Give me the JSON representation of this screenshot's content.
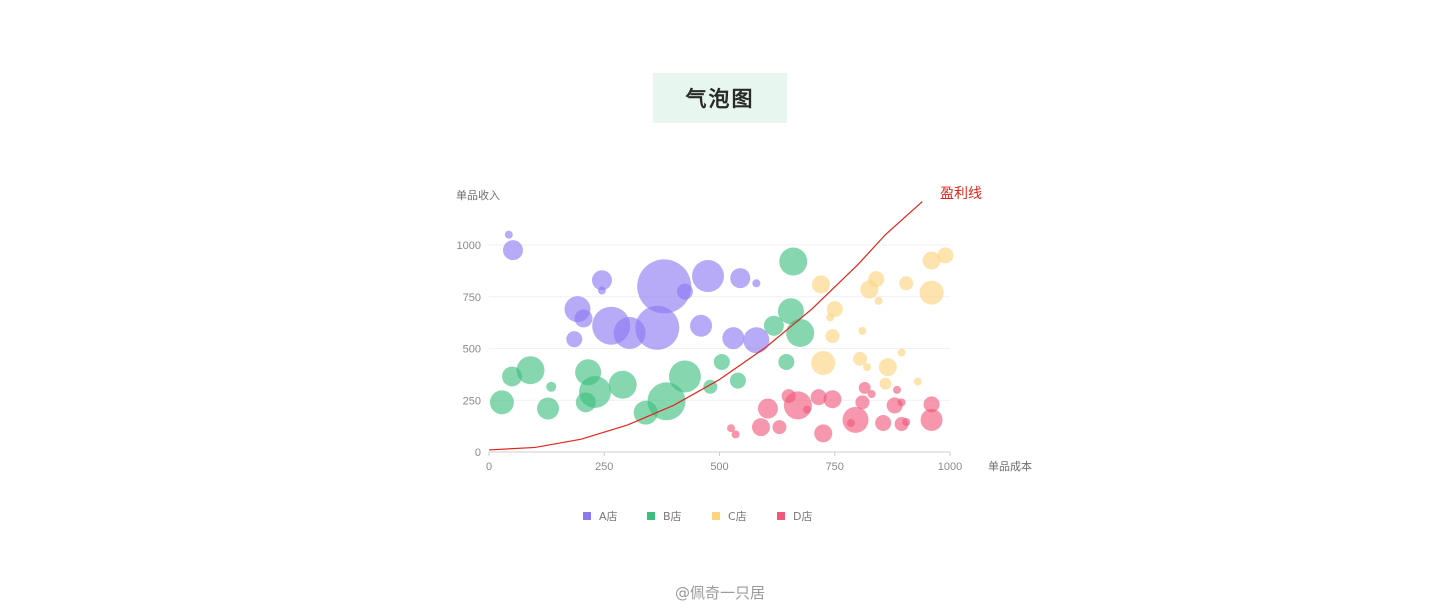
{
  "title": "气泡图",
  "credit": "@佩奇一只居",
  "chart_data": {
    "type": "scatter",
    "variant": "bubble",
    "title": "气泡图",
    "xlabel": "单品成本",
    "ylabel": "单品收入",
    "xlim": [
      0,
      1000
    ],
    "ylim": [
      0,
      1000
    ],
    "xticks": [
      "0",
      "250",
      "500",
      "750",
      "1000"
    ],
    "yticks": [
      "0",
      "250",
      "500",
      "750",
      "1000"
    ],
    "grid": true,
    "legend_position": "bottom",
    "annotation": {
      "label": "盈利线",
      "color": "#e0261c",
      "curve": [
        [
          0,
          10
        ],
        [
          100,
          22
        ],
        [
          200,
          62
        ],
        [
          300,
          130
        ],
        [
          400,
          225
        ],
        [
          500,
          350
        ],
        [
          600,
          505
        ],
        [
          700,
          690
        ],
        [
          800,
          905
        ],
        [
          860,
          1050
        ],
        [
          940,
          1210
        ]
      ]
    },
    "series": [
      {
        "name": "A店",
        "color": "#8b78f2",
        "points": [
          {
            "x": 43,
            "y": 1050,
            "r": 4
          },
          {
            "x": 52,
            "y": 975,
            "r": 10
          },
          {
            "x": 245,
            "y": 830,
            "r": 10
          },
          {
            "x": 245,
            "y": 780,
            "r": 4
          },
          {
            "x": 380,
            "y": 800,
            "r": 27
          },
          {
            "x": 425,
            "y": 775,
            "r": 8
          },
          {
            "x": 475,
            "y": 850,
            "r": 16
          },
          {
            "x": 545,
            "y": 840,
            "r": 10
          },
          {
            "x": 580,
            "y": 815,
            "r": 4
          },
          {
            "x": 192,
            "y": 690,
            "r": 13
          },
          {
            "x": 205,
            "y": 645,
            "r": 9
          },
          {
            "x": 265,
            "y": 610,
            "r": 19
          },
          {
            "x": 305,
            "y": 575,
            "r": 16
          },
          {
            "x": 365,
            "y": 600,
            "r": 22
          },
          {
            "x": 460,
            "y": 610,
            "r": 11
          },
          {
            "x": 530,
            "y": 550,
            "r": 11
          },
          {
            "x": 580,
            "y": 540,
            "r": 13
          },
          {
            "x": 185,
            "y": 545,
            "r": 8
          }
        ]
      },
      {
        "name": "B店",
        "color": "#3cbf7e",
        "points": [
          {
            "x": 660,
            "y": 920,
            "r": 14
          },
          {
            "x": 655,
            "y": 680,
            "r": 13
          },
          {
            "x": 675,
            "y": 575,
            "r": 14
          },
          {
            "x": 618,
            "y": 610,
            "r": 10
          },
          {
            "x": 505,
            "y": 435,
            "r": 8
          },
          {
            "x": 645,
            "y": 435,
            "r": 8
          },
          {
            "x": 540,
            "y": 345,
            "r": 8
          },
          {
            "x": 480,
            "y": 315,
            "r": 7
          },
          {
            "x": 425,
            "y": 365,
            "r": 16
          },
          {
            "x": 385,
            "y": 245,
            "r": 19
          },
          {
            "x": 340,
            "y": 190,
            "r": 12
          },
          {
            "x": 290,
            "y": 325,
            "r": 14
          },
          {
            "x": 230,
            "y": 290,
            "r": 16
          },
          {
            "x": 215,
            "y": 385,
            "r": 13
          },
          {
            "x": 210,
            "y": 240,
            "r": 10
          },
          {
            "x": 90,
            "y": 395,
            "r": 14
          },
          {
            "x": 50,
            "y": 365,
            "r": 10
          },
          {
            "x": 28,
            "y": 240,
            "r": 12
          },
          {
            "x": 128,
            "y": 210,
            "r": 11
          },
          {
            "x": 135,
            "y": 315,
            "r": 5
          }
        ]
      },
      {
        "name": "C店",
        "color": "#fcd47c",
        "points": [
          {
            "x": 720,
            "y": 810,
            "r": 9
          },
          {
            "x": 825,
            "y": 785,
            "r": 9
          },
          {
            "x": 840,
            "y": 835,
            "r": 8
          },
          {
            "x": 845,
            "y": 730,
            "r": 4
          },
          {
            "x": 905,
            "y": 815,
            "r": 7
          },
          {
            "x": 960,
            "y": 925,
            "r": 9
          },
          {
            "x": 990,
            "y": 950,
            "r": 8
          },
          {
            "x": 960,
            "y": 770,
            "r": 12
          },
          {
            "x": 750,
            "y": 690,
            "r": 8
          },
          {
            "x": 740,
            "y": 650,
            "r": 4
          },
          {
            "x": 745,
            "y": 560,
            "r": 7
          },
          {
            "x": 810,
            "y": 585,
            "r": 4
          },
          {
            "x": 725,
            "y": 430,
            "r": 12
          },
          {
            "x": 805,
            "y": 450,
            "r": 7
          },
          {
            "x": 820,
            "y": 410,
            "r": 4
          },
          {
            "x": 865,
            "y": 410,
            "r": 9
          },
          {
            "x": 860,
            "y": 330,
            "r": 6
          },
          {
            "x": 895,
            "y": 480,
            "r": 4
          },
          {
            "x": 930,
            "y": 340,
            "r": 4
          }
        ]
      },
      {
        "name": "D店",
        "color": "#f0577b",
        "points": [
          {
            "x": 605,
            "y": 210,
            "r": 10
          },
          {
            "x": 650,
            "y": 270,
            "r": 7
          },
          {
            "x": 670,
            "y": 225,
            "r": 14
          },
          {
            "x": 690,
            "y": 205,
            "r": 4
          },
          {
            "x": 715,
            "y": 265,
            "r": 8
          },
          {
            "x": 745,
            "y": 255,
            "r": 9
          },
          {
            "x": 815,
            "y": 310,
            "r": 6
          },
          {
            "x": 810,
            "y": 240,
            "r": 7
          },
          {
            "x": 830,
            "y": 280,
            "r": 4
          },
          {
            "x": 880,
            "y": 225,
            "r": 8
          },
          {
            "x": 885,
            "y": 300,
            "r": 4
          },
          {
            "x": 895,
            "y": 240,
            "r": 4
          },
          {
            "x": 960,
            "y": 230,
            "r": 8
          },
          {
            "x": 960,
            "y": 155,
            "r": 11
          },
          {
            "x": 795,
            "y": 155,
            "r": 13
          },
          {
            "x": 785,
            "y": 140,
            "r": 4
          },
          {
            "x": 855,
            "y": 140,
            "r": 8
          },
          {
            "x": 895,
            "y": 135,
            "r": 7
          },
          {
            "x": 905,
            "y": 145,
            "r": 4
          },
          {
            "x": 725,
            "y": 90,
            "r": 9
          },
          {
            "x": 590,
            "y": 120,
            "r": 9
          },
          {
            "x": 630,
            "y": 120,
            "r": 7
          },
          {
            "x": 525,
            "y": 115,
            "r": 4
          },
          {
            "x": 535,
            "y": 85,
            "r": 4
          }
        ]
      }
    ]
  }
}
